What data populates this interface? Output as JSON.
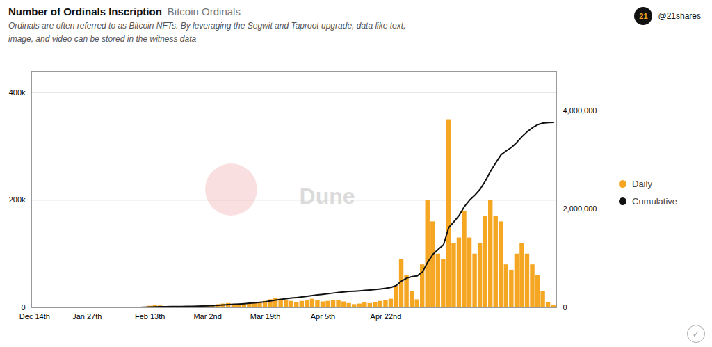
{
  "chart_data": {
    "type": "bar",
    "title": "Number of Ordinals Inscription",
    "subtitle": [
      "Ordinals are often referred to as Bitcoin NFTs. By leveraging the Segwit and Taproot upgrade, data like text,",
      "image, and video can be stored in the witness data"
    ],
    "annotations": [
      "Bitcoin Ordinals",
      "Dune",
      "21",
      "@21shares",
      "✓"
    ],
    "categories": [
      "Dec 14th",
      null,
      null,
      null,
      null,
      null,
      null,
      null,
      null,
      null,
      "Jan 27th",
      null,
      null,
      null,
      null,
      null,
      null,
      null,
      null,
      null,
      null,
      null,
      "Feb 13th",
      null,
      null,
      null,
      null,
      null,
      null,
      null,
      null,
      null,
      null,
      "Mar 2nd",
      null,
      null,
      null,
      null,
      null,
      null,
      null,
      null,
      null,
      null,
      "Mar 19th",
      null,
      null,
      null,
      null,
      null,
      null,
      null,
      null,
      null,
      null,
      "Apr 5th",
      null,
      null,
      null,
      null,
      null,
      null,
      null,
      null,
      null,
      null,
      null,
      "Apr 22nd",
      null,
      null,
      null,
      null,
      null,
      null,
      null,
      null,
      null,
      null,
      null,
      null,
      null,
      null,
      null,
      null,
      null,
      null,
      null,
      null,
      null,
      null,
      null,
      null,
      null,
      null,
      null,
      null,
      null,
      null,
      null,
      null
    ],
    "series": [
      {
        "name": "Daily",
        "type": "bar",
        "color": "#F5A623",
        "values": [
          200,
          100,
          150,
          100,
          200,
          100,
          150,
          200,
          100,
          150,
          300,
          500,
          800,
          600,
          1200,
          900,
          400,
          300,
          500,
          600,
          700,
          1500,
          3000,
          4000,
          3500,
          2000,
          1500,
          1200,
          1000,
          900,
          1800,
          2500,
          3000,
          4000,
          5000,
          6000,
          7000,
          8000,
          6000,
          5000,
          7000,
          8000,
          9000,
          10000,
          12000,
          15000,
          18000,
          16000,
          14000,
          12000,
          10000,
          12000,
          14000,
          16000,
          13000,
          11000,
          12000,
          14000,
          13000,
          11000,
          8000,
          6000,
          7000,
          9000,
          8000,
          10000,
          12000,
          14000,
          16000,
          40000,
          90000,
          60000,
          30000,
          15000,
          80000,
          200000,
          160000,
          100000,
          90000,
          350000,
          120000,
          130000,
          180000,
          130000,
          100000,
          120000,
          170000,
          200000,
          170000,
          160000,
          80000,
          70000,
          100000,
          120000,
          100000,
          80000,
          60000,
          30000,
          10000,
          5000
        ]
      },
      {
        "name": "Cumulative",
        "type": "line",
        "color": "#111111",
        "axis": "y2",
        "values": [
          200,
          300,
          450,
          550,
          750,
          850,
          1000,
          1200,
          1300,
          1450,
          1750,
          2250,
          3050,
          3650,
          4850,
          5750,
          6150,
          6450,
          6950,
          7550,
          8250,
          9750,
          12750,
          16750,
          20250,
          22250,
          23750,
          24950,
          25950,
          26850,
          28650,
          31150,
          34150,
          38150,
          43150,
          49150,
          56150,
          64150,
          70150,
          75150,
          82150,
          90150,
          99150,
          109150,
          121150,
          136150,
          154150,
          170150,
          184150,
          196150,
          206150,
          218150,
          232150,
          248150,
          261150,
          272150,
          284150,
          298150,
          311150,
          322150,
          330150,
          336150,
          343150,
          352150,
          360150,
          370150,
          382150,
          396150,
          412150,
          452150,
          542150,
          602150,
          632150,
          647150,
          727150,
          927150,
          1087150,
          1187150,
          1277150,
          1627150,
          1747150,
          1877150,
          2057150,
          2187150,
          2287150,
          2407150,
          2577150,
          2777150,
          2947150,
          3107150,
          3187150,
          3257150,
          3357150,
          3477150,
          3577150,
          3657150,
          3717150,
          3747150,
          3757150,
          3762150
        ]
      }
    ],
    "ylim": [
      0,
      440000
    ],
    "yticks": [
      0,
      {
        "value": 200000,
        "label": "200k"
      },
      {
        "value": 400000,
        "label": "400k"
      }
    ],
    "y2lim": [
      0,
      4800000
    ],
    "y2ticks": [
      0,
      {
        "value": 2000000,
        "label": "2,000,000"
      },
      {
        "value": 4000000,
        "label": "4,000,000"
      }
    ],
    "grid": true,
    "legend": "right"
  }
}
